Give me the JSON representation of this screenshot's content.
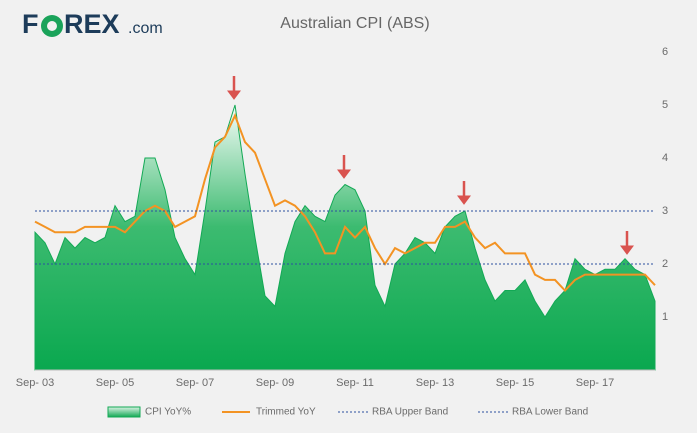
{
  "logo": {
    "lead": "F",
    "rest": "REX",
    "suffix": ".com"
  },
  "chart_data": {
    "type": "area_line",
    "title": "Australian CPI (ABS)",
    "categories": [
      "Sep- 03",
      null,
      null,
      null,
      null,
      null,
      null,
      null,
      "Sep- 05",
      null,
      null,
      null,
      null,
      null,
      null,
      null,
      "Sep- 07",
      null,
      null,
      null,
      null,
      null,
      null,
      null,
      "Sep- 09",
      null,
      null,
      null,
      null,
      null,
      null,
      null,
      "Sep- 11",
      null,
      null,
      null,
      null,
      null,
      null,
      null,
      "Sep- 13",
      null,
      null,
      null,
      null,
      null,
      null,
      null,
      "Sep- 15",
      null,
      null,
      null,
      null,
      null,
      null,
      null,
      "Sep- 17",
      null,
      null,
      null,
      null,
      null,
      null
    ],
    "series": [
      {
        "name": "CPI YoY%",
        "color": "#13a955",
        "kind": "area",
        "values": [
          2.6,
          2.4,
          2.0,
          2.5,
          2.3,
          2.5,
          2.4,
          2.5,
          3.1,
          2.8,
          2.9,
          4.0,
          4.0,
          3.4,
          2.5,
          2.1,
          1.8,
          3.0,
          4.3,
          4.4,
          5.0,
          3.7,
          2.5,
          1.4,
          1.2,
          2.2,
          2.8,
          3.1,
          2.9,
          2.8,
          3.3,
          3.5,
          3.4,
          3.0,
          1.6,
          1.2,
          2.0,
          2.2,
          2.5,
          2.4,
          2.2,
          2.7,
          2.9,
          3.0,
          2.3,
          1.7,
          1.3,
          1.5,
          1.5,
          1.7,
          1.3,
          1.0,
          1.3,
          1.5,
          2.1,
          1.9,
          1.8,
          1.9,
          1.9,
          2.1,
          1.9,
          1.8,
          1.3
        ]
      },
      {
        "name": "Trimmed YoY",
        "color": "#f39323",
        "kind": "line",
        "values": [
          2.8,
          2.7,
          2.6,
          2.6,
          2.6,
          2.7,
          2.7,
          2.7,
          2.7,
          2.6,
          2.8,
          3.0,
          3.1,
          3.0,
          2.7,
          2.8,
          2.9,
          3.6,
          4.2,
          4.4,
          4.8,
          4.3,
          4.1,
          3.6,
          3.1,
          3.2,
          3.1,
          2.9,
          2.6,
          2.2,
          2.2,
          2.7,
          2.5,
          2.7,
          2.3,
          2.0,
          2.3,
          2.2,
          2.3,
          2.4,
          2.4,
          2.7,
          2.7,
          2.8,
          2.5,
          2.3,
          2.4,
          2.2,
          2.2,
          2.2,
          1.8,
          1.7,
          1.7,
          1.5,
          1.7,
          1.8,
          1.8,
          1.8,
          1.8,
          1.8,
          1.8,
          1.8,
          1.6
        ]
      }
    ],
    "bands": [
      {
        "name": "RBA Upper Band",
        "value": 3,
        "color": "#2b4fa0"
      },
      {
        "name": "RBA Lower Band",
        "value": 2,
        "color": "#2b4fa0"
      }
    ],
    "ylim": [
      0,
      6
    ],
    "yticks": [
      1,
      2,
      3,
      4,
      5,
      6
    ]
  }
}
